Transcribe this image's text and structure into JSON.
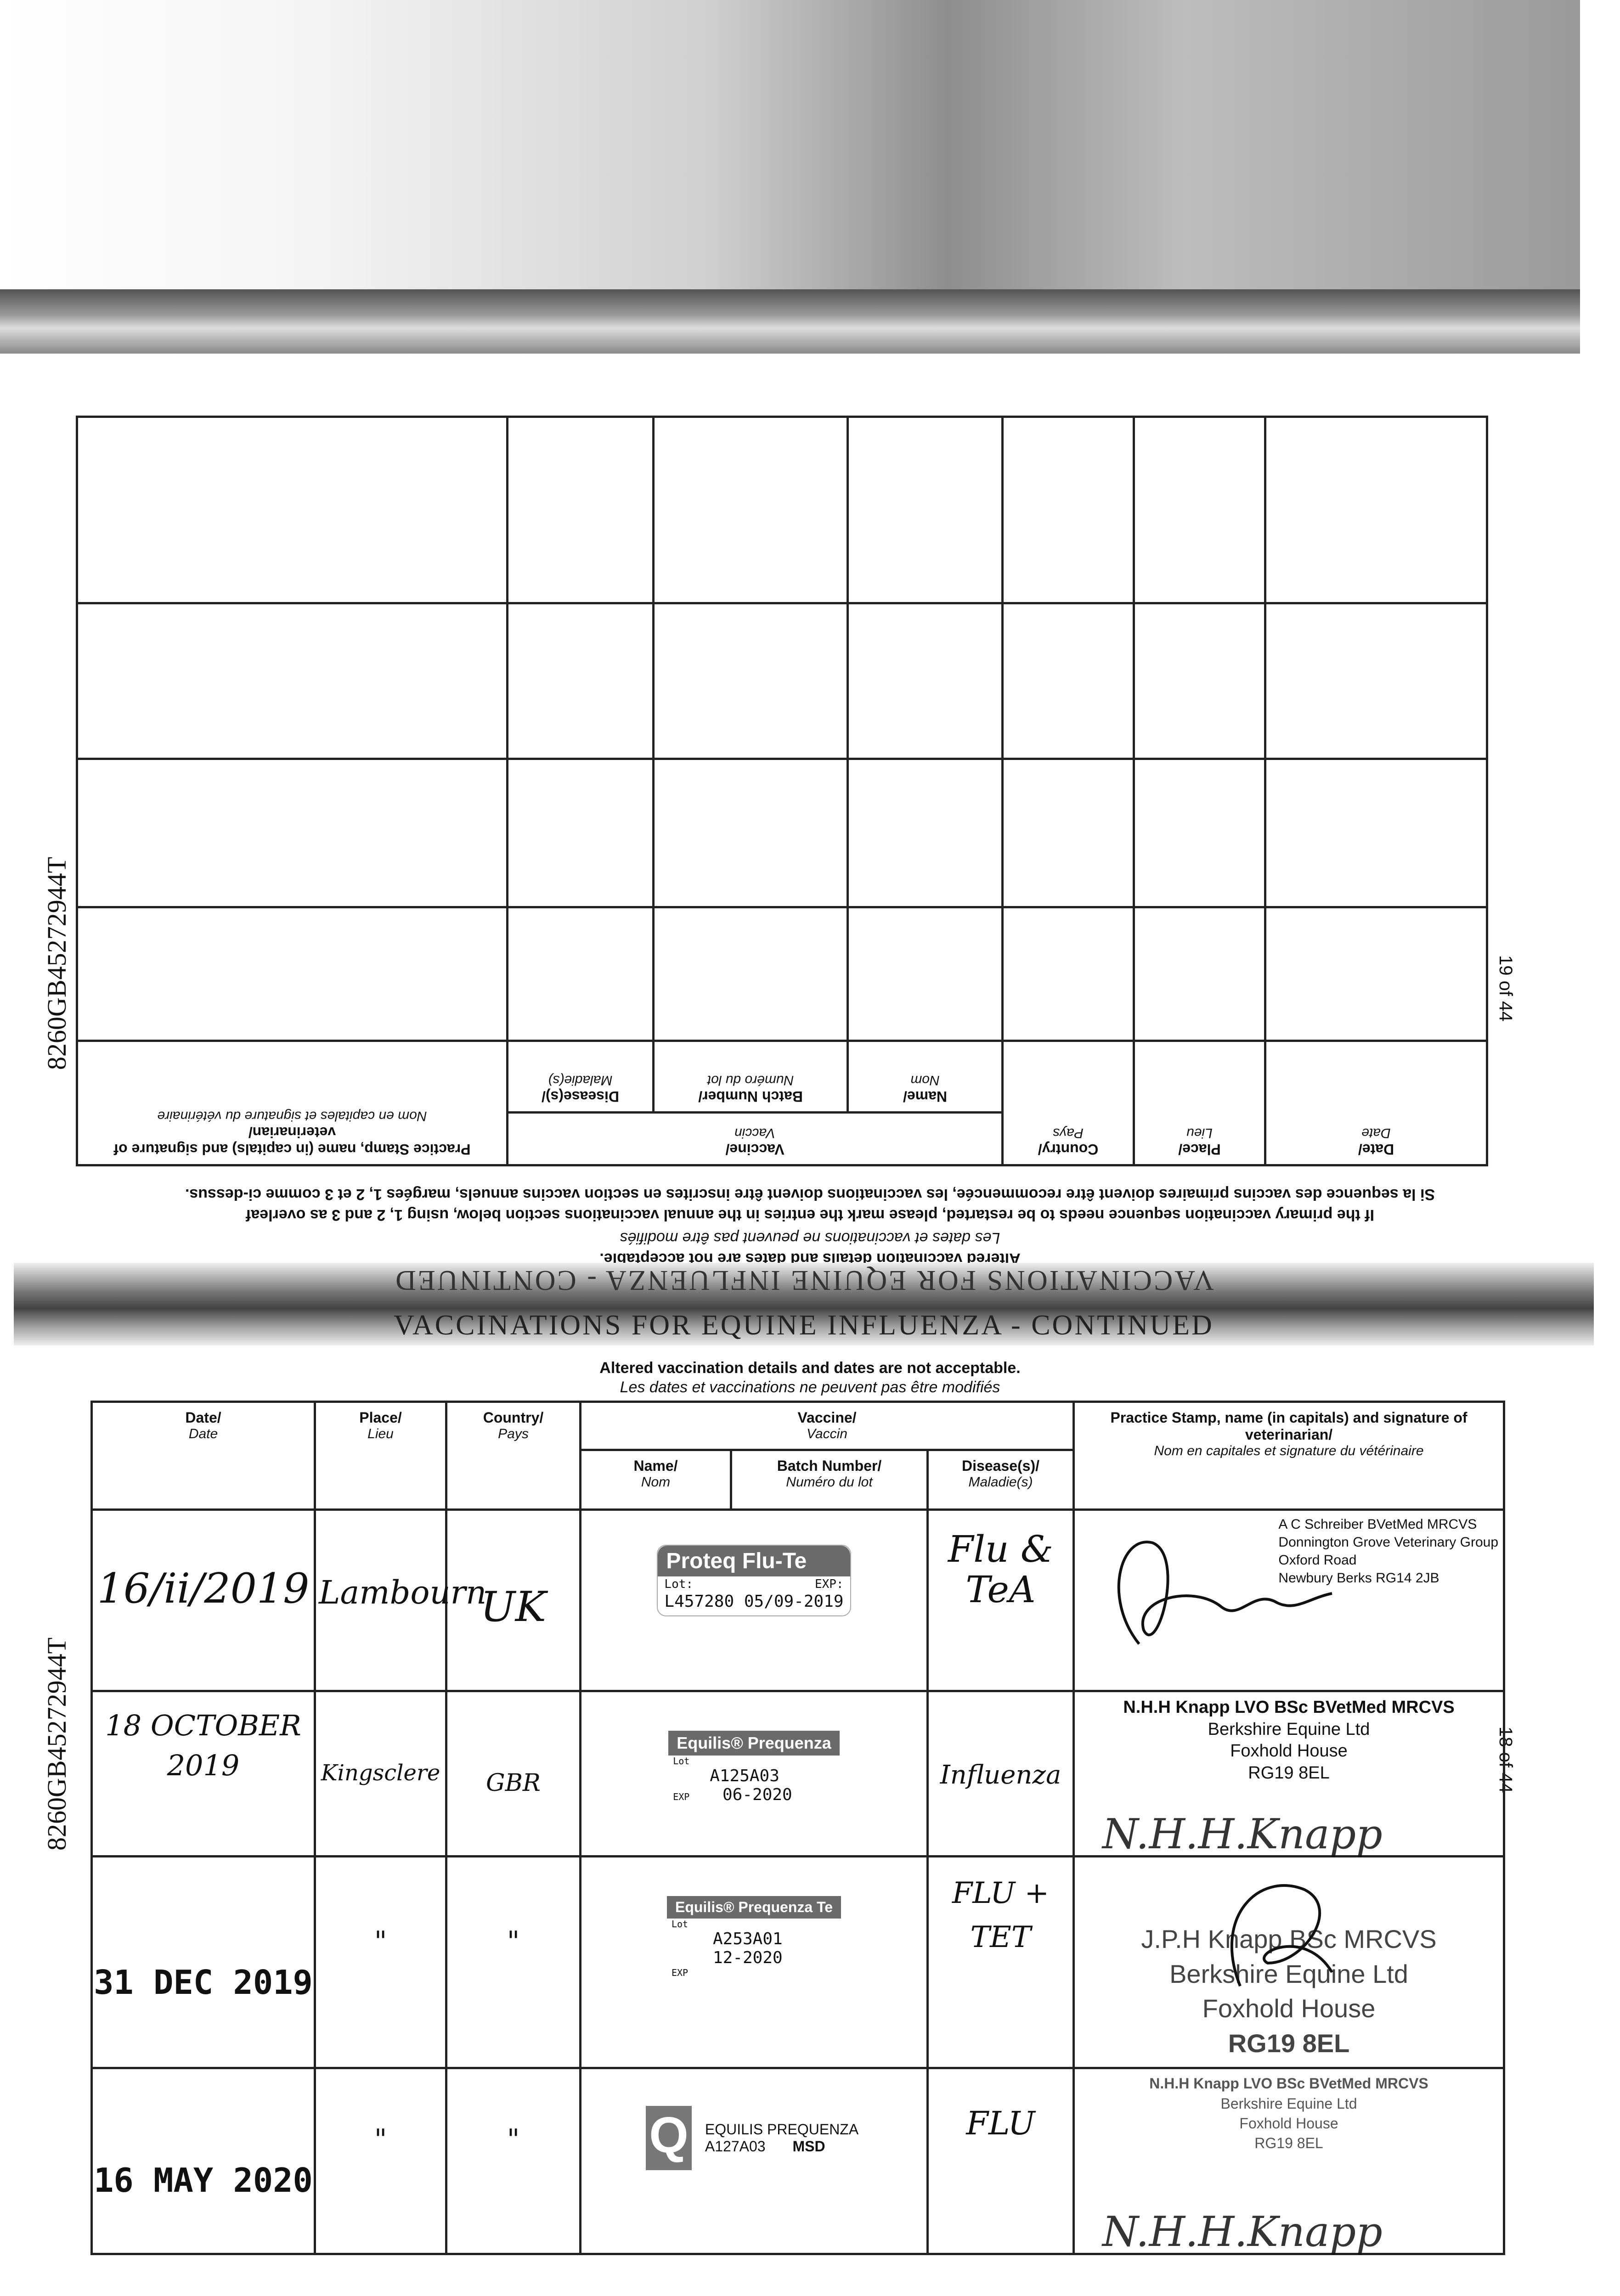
{
  "document_id": "8260GB45272944T",
  "pages": {
    "upper": "19 of 44",
    "lower": "18 of 44"
  },
  "section_title": "VACCINATIONS FOR EQUINE INFLUENZA - CONTINUED",
  "notes": {
    "altered_en": "Altered vaccination details and dates are not acceptable.",
    "altered_fr": "Les dates et vaccinations ne peuvent pas être modifiés",
    "restart_en": "If the primary vaccination sequence needs to be restarted, please mark the entries in the annual vaccinations section below, using 1, 2 and 3 as overleaf",
    "restart_fr": "Si la sequence des vaccins primaires doivent être recommencée, les vaccinations doivent être inscrites en section vaccins annuels, margées 1, 2 et 3 comme ci-dessus."
  },
  "headers": {
    "date": "Date/",
    "date_fr": "Date",
    "place": "Place/",
    "place_fr": "Lieu",
    "country": "Country/",
    "country_fr": "Pays",
    "vaccine": "Vaccine/",
    "vaccine_fr": "Vaccin",
    "name": "Name/",
    "name_fr": "Nom",
    "batch": "Batch Number/",
    "batch_fr": "Numéro du lot",
    "disease": "Disease(s)/",
    "disease_fr": "Maladie(s)",
    "practice": "Practice Stamp, name (in capitals) and signature of veterinarian/",
    "practice_fr": "Nom en capitales et signature du vétérinaire"
  },
  "rows": [
    {
      "date": "16/ii/2019",
      "place": "Lambourn",
      "country": "UK",
      "label_name": "Proteq Flu-Te",
      "lot_label": "Lot:",
      "lot": "L457280",
      "exp_label": "EXP:",
      "exp": "05/09-2019",
      "disease": "Flu & TeA",
      "vet": [
        "A C Schreiber BVetMed MRCVS",
        "Donnington Grove Veterinary Group",
        "Oxford Road",
        "Newbury Berks RG14 2JB"
      ]
    },
    {
      "date": "18 OCTOBER 2019",
      "place": "Kingsclere",
      "country": "GBR",
      "label_name": "Equilis® Prequenza",
      "lot_label": "Lot",
      "lot": "A125A03",
      "exp_label": "EXP",
      "exp": "06-2020",
      "disease": "Influenza",
      "vet": [
        "N.H.H Knapp LVO BSc BVetMed MRCVS",
        "Berkshire Equine Ltd",
        "Foxhold House",
        "RG19 8EL"
      ],
      "signature": "N.H.H.Knapp"
    },
    {
      "date": "31 DEC 2019",
      "place": "\"",
      "country": "\"",
      "label_name": "Equilis® Prequenza Te",
      "lot_label": "Lot",
      "lot": "A253A01",
      "exp_label": "EXP",
      "exp": "12-2020",
      "disease": "FLU + TET",
      "vet": [
        "J.P.H Knapp BSc MRCVS",
        "Berkshire Equine Ltd",
        "Foxhold House",
        "RG19 8EL"
      ]
    },
    {
      "date": "16 MAY 2020",
      "place": "\"",
      "country": "\"",
      "label_name": "EQUILIS PREQUENZA",
      "lot": "A127A03",
      "brand": "MSD",
      "disease": "FLU",
      "vet": [
        "N.H.H Knapp LVO BSc BVetMed MRCVS",
        "Berkshire Equine Ltd",
        "Foxhold House",
        "RG19 8EL"
      ],
      "signature": "N.H.H.Knapp"
    }
  ]
}
